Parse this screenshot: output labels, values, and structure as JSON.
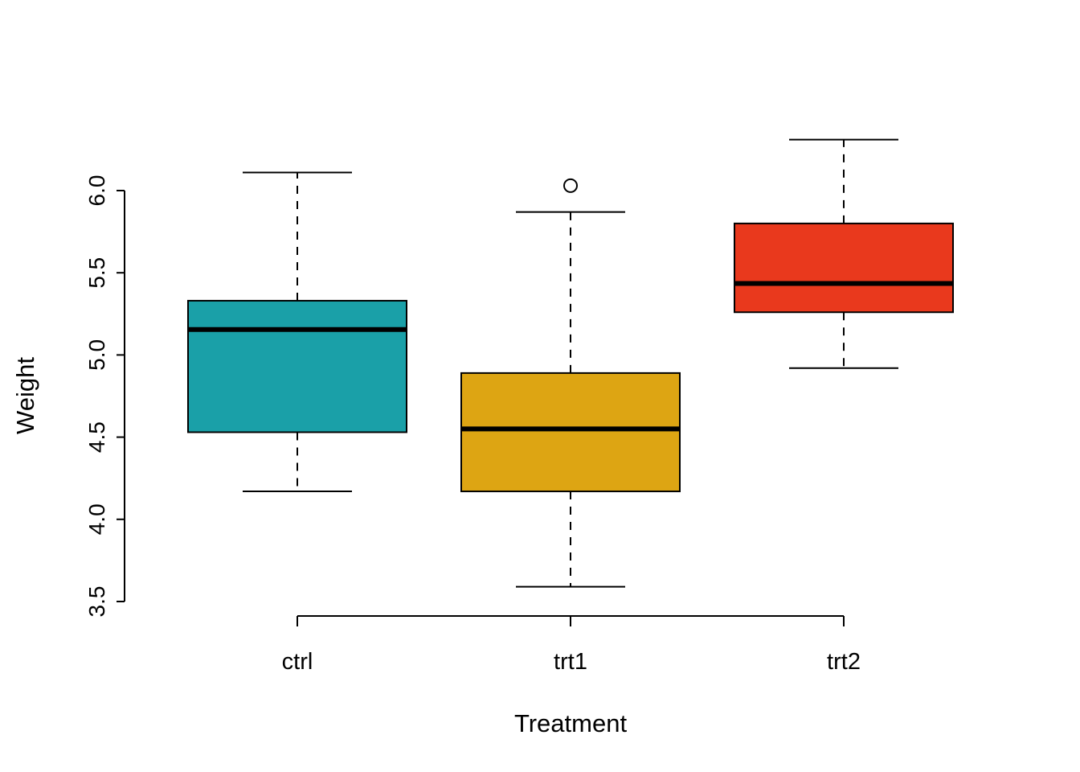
{
  "chart_data": {
    "type": "boxplot",
    "title": "",
    "xlabel": "Treatment",
    "ylabel": "Weight",
    "categories": [
      "ctrl",
      "trt1",
      "trt2"
    ],
    "ytick_values": [
      3.5,
      4.0,
      4.5,
      5.0,
      5.5,
      6.0
    ],
    "ytick_labels": [
      "3.5",
      "4.0",
      "4.5",
      "5.0",
      "5.5",
      "6.0"
    ],
    "ylim": [
      3.5,
      6.35
    ],
    "grid": "off",
    "legend": "none",
    "series": [
      {
        "name": "ctrl",
        "color": "#1AA0A8",
        "whisker_low": 4.17,
        "q1": 4.53,
        "median": 5.155,
        "q3": 5.33,
        "whisker_high": 6.11,
        "outliers": []
      },
      {
        "name": "trt1",
        "color": "#DDA513",
        "whisker_low": 3.59,
        "q1": 4.17,
        "median": 4.55,
        "q3": 4.89,
        "whisker_high": 5.87,
        "outliers": [
          6.03
        ]
      },
      {
        "name": "trt2",
        "color": "#E9391D",
        "whisker_low": 4.92,
        "q1": 5.26,
        "median": 5.435,
        "q3": 5.8,
        "whisker_high": 6.31,
        "outliers": []
      }
    ]
  }
}
